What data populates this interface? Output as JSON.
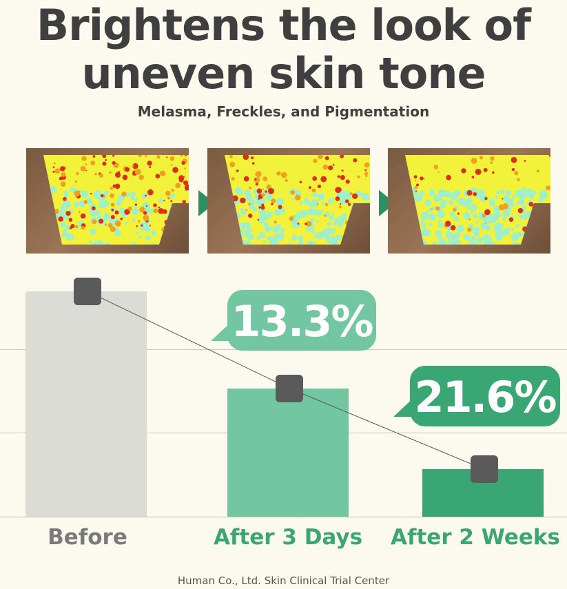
{
  "title_line1": "Brightens the look of",
  "title_line2": "uneven skin tone",
  "subtitle": "Melasma, Freckles, and Pigmentation",
  "photos": [
    "Before",
    "After 3 Days",
    "After 2 Weeks"
  ],
  "colors": {
    "background": "#fcf9ee",
    "before_bar": "#dcdcd6",
    "day3_bar": "#72c6a1",
    "week2_bar": "#3aa673",
    "arrow": "#2f8f64",
    "marker": "#5a5a5a"
  },
  "chart_data": {
    "type": "bar",
    "categories": [
      "Before",
      "After 3 Days",
      "After 2 Weeks"
    ],
    "values": [
      100,
      57,
      21
    ],
    "annotations": [
      "13.3%",
      "21.6%"
    ],
    "grid": true,
    "line_overlay": true
  },
  "footer": "Human Co., Ltd. Skin Clinical Trial Center"
}
